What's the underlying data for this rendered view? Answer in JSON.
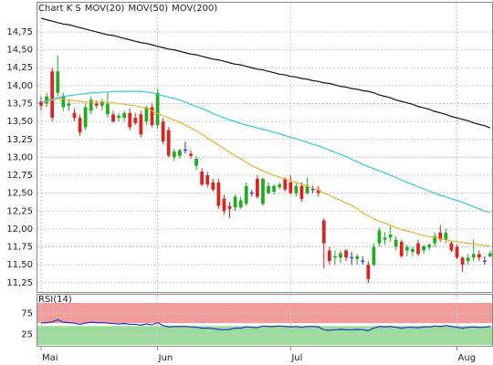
{
  "chart_data": [
    {
      "type": "candlestick",
      "categories": [
        "Mai",
        null,
        null,
        null,
        null,
        null,
        null,
        null,
        null,
        null,
        null,
        null,
        null,
        null,
        null,
        null,
        null,
        null,
        null,
        null,
        null,
        "Jun",
        null,
        null,
        null,
        null,
        null,
        null,
        null,
        null,
        null,
        null,
        null,
        null,
        null,
        null,
        null,
        null,
        null,
        null,
        null,
        null,
        null,
        null,
        null,
        "Jul",
        null,
        null,
        null,
        null,
        null,
        null,
        null,
        null,
        null,
        null,
        null,
        null,
        null,
        null,
        null,
        null,
        null,
        null,
        null,
        null,
        null,
        null,
        null,
        null,
        null,
        null,
        null,
        null,
        null,
        "Aug",
        null,
        null,
        null,
        null,
        null,
        null
      ],
      "ylim": [
        11.12,
        15.17
      ],
      "yticks": [
        {
          "value": 11.25,
          "label": "11,25"
        },
        {
          "value": 11.5,
          "label": "11,50"
        },
        {
          "value": 11.75,
          "label": "11,75"
        },
        {
          "value": 12,
          "label": "12,00"
        },
        {
          "value": 12.25,
          "label": "12,25"
        },
        {
          "value": 12.5,
          "label": "12,50"
        },
        {
          "value": 12.75,
          "label": "12,75"
        },
        {
          "value": 13,
          "label": "13,00"
        },
        {
          "value": 13.25,
          "label": "13,25"
        },
        {
          "value": 13.5,
          "label": "13,50"
        },
        {
          "value": 13.75,
          "label": "13,75"
        },
        {
          "value": 14,
          "label": "14,00"
        },
        {
          "value": 14.25,
          "label": "14,25"
        },
        {
          "value": 14.5,
          "label": "14,50"
        },
        {
          "value": 14.75,
          "label": "14,75"
        }
      ],
      "grid": true,
      "candles": {
        "name": "Chart K S",
        "color": "#d2401e",
        "up_color": "#22aa22",
        "down_color": "#dd2222",
        "flat_color": "#2233cc",
        "ohlc": [
          [
            13.78,
            13.85,
            13.65,
            13.72
          ],
          [
            13.75,
            13.9,
            13.7,
            13.85
          ],
          [
            14.2,
            14.25,
            13.5,
            13.55
          ],
          [
            13.9,
            14.42,
            13.85,
            14.2
          ],
          [
            13.7,
            13.9,
            13.65,
            13.85
          ],
          [
            13.72,
            13.8,
            13.65,
            13.75
          ],
          [
            13.62,
            13.68,
            13.5,
            13.55
          ],
          [
            13.55,
            13.6,
            13.3,
            13.35
          ],
          [
            13.42,
            13.75,
            13.38,
            13.7
          ],
          [
            13.65,
            13.85,
            13.6,
            13.8
          ],
          [
            13.75,
            13.8,
            13.68,
            13.72
          ],
          [
            13.72,
            13.82,
            13.65,
            13.78
          ],
          [
            13.6,
            13.9,
            13.55,
            13.75
          ],
          [
            13.6,
            13.65,
            13.48,
            13.5
          ],
          [
            13.55,
            13.62,
            13.5,
            13.58
          ],
          [
            13.55,
            13.65,
            13.5,
            13.62
          ],
          [
            13.62,
            13.68,
            13.38,
            13.42
          ],
          [
            13.55,
            13.62,
            13.45,
            13.48
          ],
          [
            13.6,
            13.65,
            13.28,
            13.32
          ],
          [
            13.5,
            13.72,
            13.45,
            13.7
          ],
          [
            13.7,
            13.75,
            13.42,
            13.45
          ],
          [
            13.45,
            13.95,
            13.4,
            13.9
          ],
          [
            13.5,
            13.55,
            13.18,
            13.22
          ],
          [
            13.38,
            13.42,
            13.0,
            13.02
          ],
          [
            13.0,
            13.12,
            12.95,
            13.08
          ],
          [
            13.02,
            13.12,
            12.98,
            13.1
          ],
          [
            13.1,
            13.22,
            13.05,
            13.1
          ],
          [
            13.05,
            13.1,
            12.98,
            13.02
          ],
          [
            12.88,
            13.02,
            12.82,
            12.98
          ],
          [
            12.8,
            12.85,
            12.6,
            12.62
          ],
          [
            12.75,
            12.8,
            12.58,
            12.62
          ],
          [
            12.65,
            12.7,
            12.52,
            12.55
          ],
          [
            12.65,
            12.7,
            12.28,
            12.32
          ],
          [
            12.42,
            12.48,
            12.2,
            12.25
          ],
          [
            12.32,
            12.38,
            12.15,
            12.28
          ],
          [
            12.3,
            12.48,
            12.25,
            12.45
          ],
          [
            12.3,
            12.45,
            12.28,
            12.4
          ],
          [
            12.35,
            12.65,
            12.32,
            12.6
          ],
          [
            12.5,
            12.55,
            12.45,
            12.5
          ],
          [
            12.7,
            12.75,
            12.42,
            12.45
          ],
          [
            12.35,
            12.72,
            12.32,
            12.7
          ],
          [
            12.5,
            12.65,
            12.48,
            12.6
          ],
          [
            12.52,
            12.62,
            12.48,
            12.6
          ],
          [
            12.58,
            12.65,
            12.55,
            12.62
          ],
          [
            12.7,
            12.72,
            12.52,
            12.55
          ],
          [
            12.65,
            12.75,
            12.48,
            12.5
          ],
          [
            12.5,
            12.65,
            12.45,
            12.6
          ],
          [
            12.6,
            12.65,
            12.38,
            12.42
          ],
          [
            12.5,
            12.72,
            12.48,
            12.6
          ],
          [
            12.55,
            12.6,
            12.5,
            12.55
          ],
          [
            12.55,
            12.6,
            12.45,
            12.5
          ],
          [
            12.12,
            12.15,
            11.45,
            11.8
          ],
          [
            11.7,
            11.75,
            11.5,
            11.55
          ],
          [
            11.6,
            11.7,
            11.5,
            11.62
          ],
          [
            11.6,
            11.7,
            11.52,
            11.66
          ],
          [
            11.7,
            11.72,
            11.55,
            11.6
          ],
          [
            11.6,
            11.68,
            11.5,
            11.6
          ],
          [
            11.58,
            11.65,
            11.5,
            11.62
          ],
          [
            11.55,
            11.62,
            11.5,
            11.55
          ],
          [
            11.5,
            11.55,
            11.25,
            11.3
          ],
          [
            11.5,
            11.8,
            11.48,
            11.75
          ],
          [
            11.8,
            12.02,
            11.75,
            11.98
          ],
          [
            11.85,
            11.95,
            11.78,
            11.88
          ],
          [
            11.88,
            12.05,
            11.82,
            11.92
          ],
          [
            11.75,
            11.9,
            11.7,
            11.85
          ],
          [
            11.82,
            11.85,
            11.6,
            11.62
          ],
          [
            11.7,
            11.78,
            11.62,
            11.75
          ],
          [
            11.68,
            11.75,
            11.62,
            11.72
          ],
          [
            11.8,
            11.85,
            11.62,
            11.65
          ],
          [
            11.7,
            11.78,
            11.65,
            11.76
          ],
          [
            11.74,
            11.8,
            11.7,
            11.78
          ],
          [
            11.8,
            11.95,
            11.75,
            11.9
          ],
          [
            11.95,
            12.05,
            11.82,
            11.85
          ],
          [
            11.85,
            12.0,
            11.8,
            11.95
          ],
          [
            11.8,
            11.82,
            11.68,
            11.7
          ],
          [
            11.75,
            11.78,
            11.58,
            11.6
          ],
          [
            11.6,
            11.62,
            11.4,
            11.5
          ],
          [
            11.55,
            11.65,
            11.5,
            11.6
          ],
          [
            11.6,
            11.85,
            11.55,
            11.65
          ],
          [
            11.65,
            11.7,
            11.55,
            11.6
          ],
          [
            11.55,
            11.62,
            11.5,
            11.55
          ],
          [
            11.62,
            11.7,
            11.6,
            11.66
          ]
        ]
      },
      "series": [
        {
          "name": "MOV(20)",
          "color": "#f0b030",
          "values": [
            13.76,
            13.78,
            13.8,
            13.82,
            13.81,
            13.8,
            13.79,
            13.78,
            13.77,
            13.77,
            13.77,
            13.77,
            13.77,
            13.76,
            13.75,
            13.74,
            13.73,
            13.72,
            13.7,
            13.69,
            13.65,
            13.61,
            13.58,
            13.55,
            13.52,
            13.49,
            13.45,
            13.41,
            13.37,
            13.32,
            13.27,
            13.22,
            13.17,
            13.12,
            13.07,
            13.02,
            12.98,
            12.93,
            12.88,
            12.85,
            12.81,
            12.78,
            12.75,
            12.72,
            12.7,
            12.67,
            12.65,
            12.62,
            12.6,
            12.57,
            12.54,
            12.5,
            12.47,
            12.43,
            12.4,
            12.36,
            12.33,
            12.28,
            12.22,
            12.18,
            12.14,
            12.11,
            12.08,
            12.05,
            12.02,
            11.99,
            11.97,
            11.95,
            11.93,
            11.91,
            11.89,
            11.88,
            11.86,
            11.85,
            11.83,
            11.82,
            11.81,
            11.8,
            11.79,
            11.78,
            11.77,
            11.76
          ]
        },
        {
          "name": "MOV(50)",
          "color": "#30c8e0",
          "values": [
            13.77,
            13.79,
            13.81,
            13.83,
            13.85,
            13.86,
            13.87,
            13.88,
            13.89,
            13.9,
            13.9,
            13.91,
            13.91,
            13.92,
            13.92,
            13.92,
            13.92,
            13.92,
            13.92,
            13.91,
            13.9,
            13.88,
            13.86,
            13.84,
            13.82,
            13.8,
            13.77,
            13.74,
            13.71,
            13.68,
            13.65,
            13.61,
            13.58,
            13.55,
            13.52,
            13.5,
            13.47,
            13.45,
            13.43,
            13.41,
            13.39,
            13.37,
            13.35,
            13.33,
            13.3,
            13.28,
            13.26,
            13.23,
            13.21,
            13.18,
            13.16,
            13.13,
            13.1,
            13.07,
            13.04,
            13.01,
            12.97,
            12.94,
            12.9,
            12.87,
            12.84,
            12.81,
            12.78,
            12.75,
            12.72,
            12.68,
            12.65,
            12.62,
            12.59,
            12.56,
            12.53,
            12.5,
            12.47,
            12.45,
            12.42,
            12.4,
            12.37,
            12.34,
            12.31,
            12.28,
            12.25,
            12.23
          ]
        },
        {
          "name": "MOV(200)",
          "color": "#111111",
          "values": [
            14.94,
            14.92,
            14.9,
            14.88,
            14.86,
            14.85,
            14.83,
            14.81,
            14.79,
            14.77,
            14.75,
            14.73,
            14.71,
            14.7,
            14.68,
            14.66,
            14.64,
            14.62,
            14.6,
            14.59,
            14.57,
            14.55,
            14.53,
            14.51,
            14.5,
            14.48,
            14.46,
            14.44,
            14.43,
            14.41,
            14.39,
            14.37,
            14.36,
            14.34,
            14.32,
            14.3,
            14.29,
            14.27,
            14.25,
            14.23,
            14.22,
            14.2,
            14.18,
            14.16,
            14.15,
            14.13,
            14.12,
            14.1,
            14.09,
            14.07,
            14.06,
            14.04,
            14.03,
            14.01,
            13.99,
            13.98,
            13.96,
            13.95,
            13.93,
            13.92,
            13.9,
            13.87,
            13.85,
            13.83,
            13.8,
            13.78,
            13.76,
            13.74,
            13.71,
            13.69,
            13.67,
            13.64,
            13.62,
            13.6,
            13.57,
            13.55,
            13.53,
            13.51,
            13.48,
            13.46,
            13.44,
            13.41
          ]
        }
      ]
    },
    {
      "type": "line",
      "ylim": [
        0,
        100
      ],
      "yticks": [
        25,
        75
      ],
      "zones": [
        {
          "from": 52,
          "to": 100,
          "color": "#f08c8c"
        },
        {
          "from": 0,
          "to": 45,
          "color": "#8cd68c"
        }
      ],
      "series": [
        {
          "name": "RSI(14)",
          "color": "#2233cc",
          "values": [
            52,
            53,
            55,
            60,
            54,
            53,
            52,
            49,
            52,
            54,
            53,
            53,
            52,
            51,
            50,
            51,
            49,
            49,
            47,
            50,
            48,
            53,
            46,
            43,
            44,
            44,
            44,
            43,
            42,
            40,
            40,
            39,
            37,
            36,
            37,
            40,
            40,
            43,
            42,
            41,
            45,
            44,
            44,
            45,
            44,
            43,
            44,
            42,
            44,
            44,
            43,
            36,
            35,
            36,
            37,
            36,
            36,
            37,
            36,
            34,
            40,
            44,
            43,
            44,
            42,
            40,
            42,
            42,
            41,
            43,
            43,
            45,
            44,
            46,
            44,
            42,
            40,
            42,
            43,
            42,
            42,
            44
          ]
        }
      ]
    }
  ]
}
